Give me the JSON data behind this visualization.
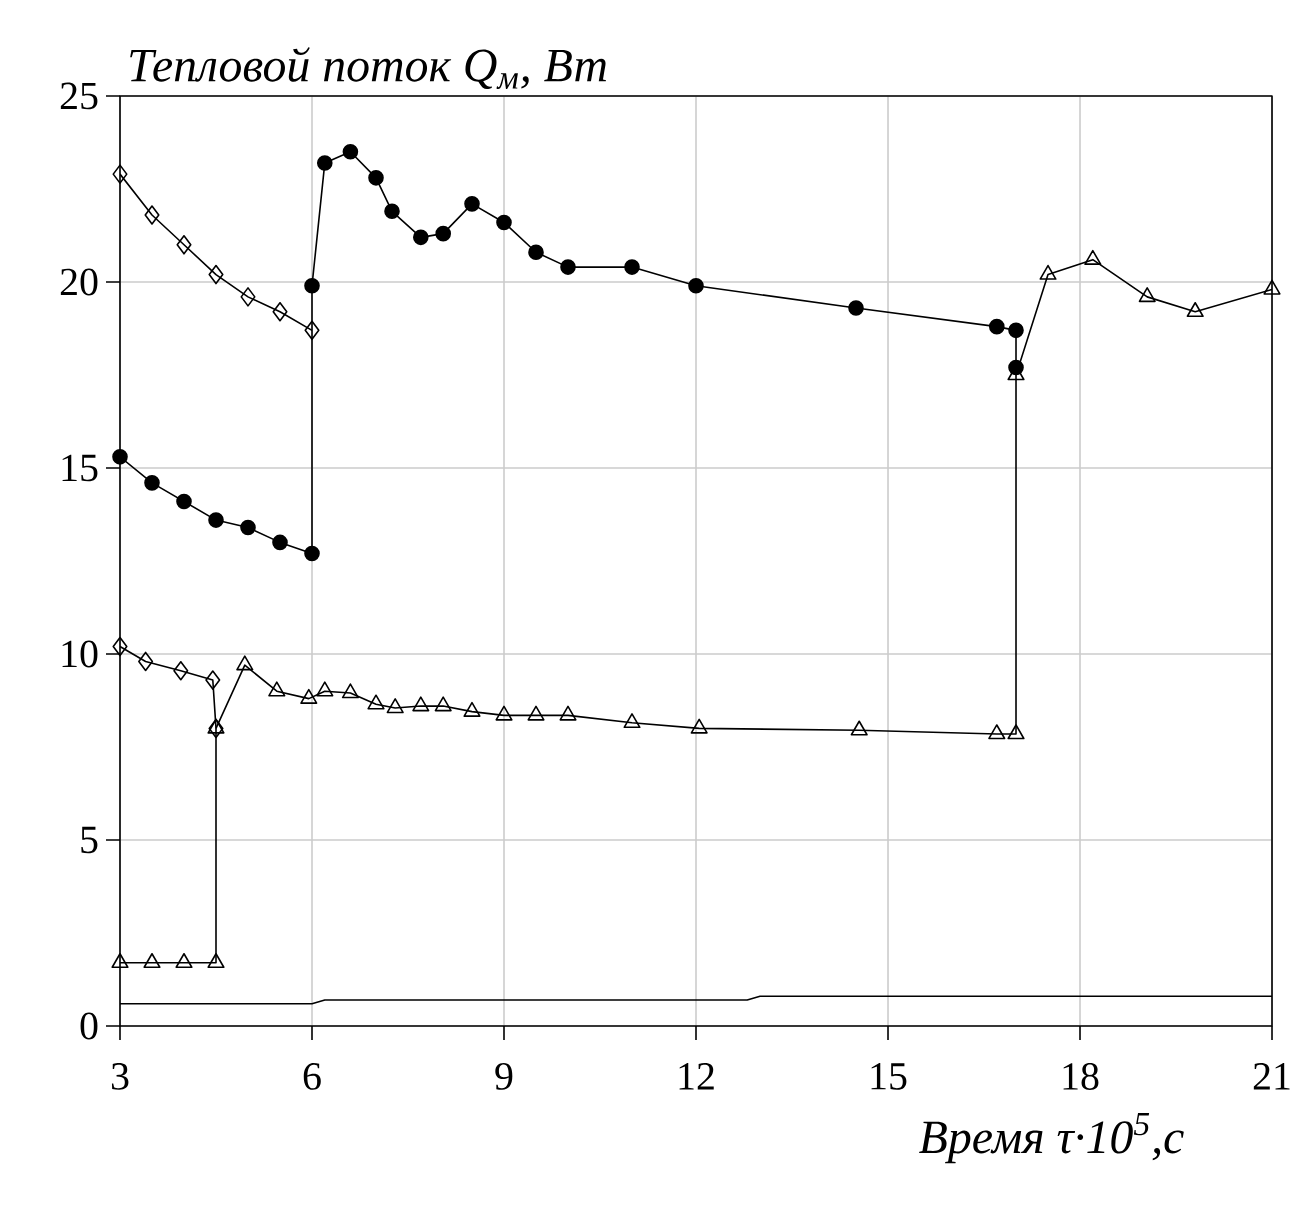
{
  "chart_data": {
    "type": "line",
    "xlabel": "Время τ·10$^{5}$,с",
    "ylabel": "Тепловой поток Q$_{м}$, Вт",
    "xlim": [
      3,
      21
    ],
    "ylim": [
      0,
      25
    ],
    "xticks": [
      3,
      6,
      9,
      12,
      15,
      18,
      21
    ],
    "yticks": [
      0,
      5,
      10,
      15,
      20,
      25
    ],
    "grid": true,
    "line_style": "solid",
    "series": [
      {
        "color": "#000000",
        "marker": "diamond",
        "x": [
          3,
          3.5,
          4,
          4.5,
          5,
          5.5,
          6
        ],
        "values": [
          22.9,
          21.8,
          21.0,
          20.2,
          19.6,
          19.2,
          18.7
        ]
      },
      {
        "color": "#000000",
        "marker": "circle",
        "x": [
          3,
          3.5,
          4,
          4.5,
          5,
          5.5,
          6,
          6,
          6.2,
          6.6,
          7.0,
          7.25,
          7.7,
          8.05,
          8.5,
          9.0,
          9.5,
          10.0,
          11.0,
          12.0,
          14.5,
          16.7,
          17.0,
          17.0
        ],
        "values": [
          15.3,
          14.6,
          14.1,
          13.6,
          13.4,
          13.0,
          12.7,
          19.9,
          23.2,
          23.5,
          22.8,
          21.9,
          21.2,
          21.3,
          22.1,
          21.6,
          20.8,
          20.4,
          20.4,
          19.9,
          19.3,
          18.8,
          18.7,
          17.7
        ]
      },
      {
        "color": "#000000",
        "marker": "diamond",
        "x": [
          3,
          3.4,
          3.95,
          4.45,
          4.5
        ],
        "values": [
          10.2,
          9.8,
          9.55,
          9.3,
          8.0
        ]
      },
      {
        "color": "#000000",
        "marker": "triangle",
        "x": [
          3,
          3.5,
          4,
          4.5,
          4.5,
          4.95,
          5.45,
          5.95,
          6.2,
          6.6,
          7.0,
          7.3,
          7.7,
          8.05,
          8.5,
          9.0,
          9.5,
          10.0,
          11.0,
          12.05,
          14.55,
          16.7,
          17.0,
          17.0,
          17.5,
          18.2,
          19.05,
          19.8,
          21.0
        ],
        "values": [
          1.7,
          1.7,
          1.7,
          1.7,
          8.0,
          9.7,
          9.0,
          8.8,
          9.0,
          8.95,
          8.65,
          8.55,
          8.6,
          8.6,
          8.45,
          8.35,
          8.35,
          8.35,
          8.15,
          8.0,
          7.95,
          7.85,
          7.85,
          17.5,
          20.2,
          20.6,
          19.6,
          19.2,
          19.8
        ]
      },
      {
        "color": "#000000",
        "marker": "none",
        "x": [
          3,
          6,
          6.2,
          12.8,
          13,
          21
        ],
        "values": [
          0.6,
          0.6,
          0.7,
          0.7,
          0.8,
          0.8
        ]
      }
    ]
  }
}
